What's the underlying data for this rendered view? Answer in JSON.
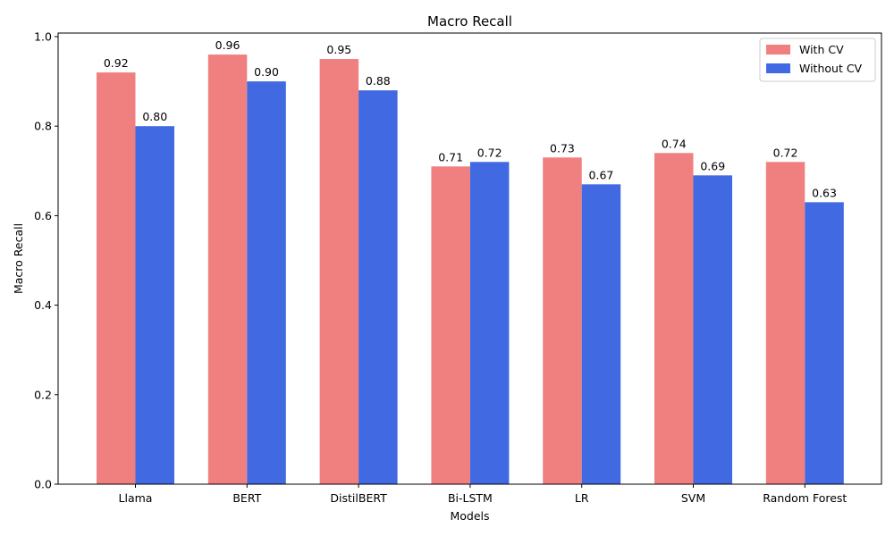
{
  "chart_data": {
    "type": "bar",
    "title": "Macro Recall",
    "xlabel": "Models",
    "ylabel": "Macro Recall",
    "categories": [
      "Llama",
      "BERT",
      "DistilBERT",
      "Bi-LSTM",
      "LR",
      "SVM",
      "Random Forest"
    ],
    "series": [
      {
        "name": "With CV",
        "color": "#f08080",
        "values": [
          0.92,
          0.96,
          0.95,
          0.71,
          0.73,
          0.74,
          0.72
        ],
        "labels": [
          "0.92",
          "0.96",
          "0.95",
          "0.71",
          "0.73",
          "0.74",
          "0.72"
        ]
      },
      {
        "name": "Without CV",
        "color": "#4169e1",
        "values": [
          0.8,
          0.9,
          0.88,
          0.72,
          0.67,
          0.69,
          0.63
        ],
        "labels": [
          "0.80",
          "0.90",
          "0.88",
          "0.72",
          "0.67",
          "0.69",
          "0.63"
        ]
      }
    ],
    "ylim": [
      0,
      1.008
    ],
    "yticks": [
      0.0,
      0.2,
      0.4,
      0.6,
      0.8,
      1.0
    ],
    "ytick_labels": [
      "0.0",
      "0.2",
      "0.4",
      "0.6",
      "0.8",
      "1.0"
    ],
    "grid": false,
    "legend_position": "top-right"
  }
}
